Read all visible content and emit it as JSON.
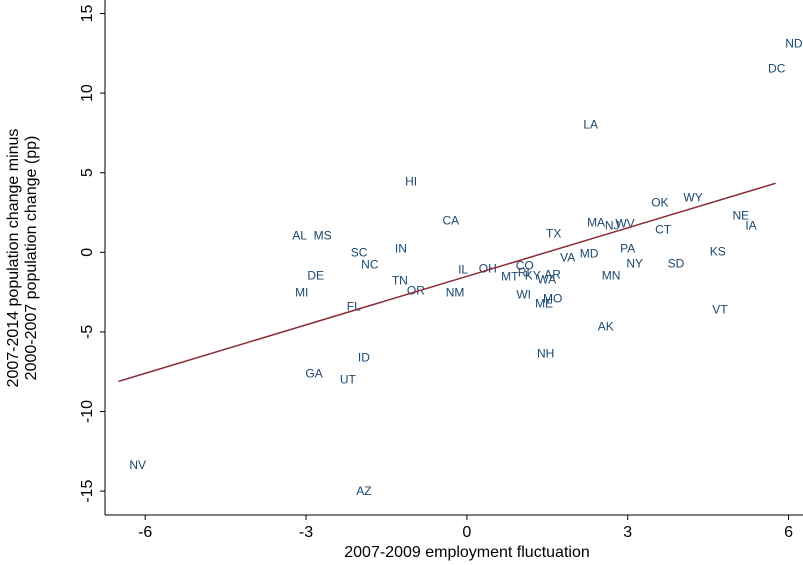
{
  "chart_data": {
    "type": "scatter",
    "xlabel": "2007-2009 employment fluctuation",
    "ylabel": [
      "2007-2014 population change minus",
      "2000-2007 population change (pp)"
    ],
    "xlim": [
      -6.75,
      6.27
    ],
    "ylim": [
      -16.5,
      15.85
    ],
    "xticks": [
      -6,
      -3,
      0,
      3,
      6
    ],
    "yticks": [
      -15,
      -10,
      -5,
      0,
      5,
      10,
      15
    ],
    "series": [
      {
        "color": "#1a476f",
        "labels": [
          "ND",
          "DC",
          "LA",
          "HI",
          "CA",
          "WY",
          "OK",
          "NE",
          "IA",
          "CT",
          "TX",
          "MA",
          "NJ",
          "WV",
          "AL",
          "MS",
          "SC",
          "IN",
          "NC",
          "PA",
          "KS",
          "MD",
          "VA",
          "NY",
          "SD",
          "DE",
          "IL",
          "OH",
          "CO",
          "TN",
          "MT",
          "RI",
          "KY",
          "AR",
          "WA",
          "MN",
          "OR",
          "NM",
          "MI",
          "WI",
          "MO",
          "ME",
          "FL",
          "VT",
          "AK",
          "NH",
          "ID",
          "GA",
          "UT",
          "NV",
          "AZ"
        ],
        "x": [
          6.1,
          5.78,
          2.31,
          -1.04,
          -0.3,
          4.22,
          3.6,
          5.11,
          5.3,
          3.66,
          1.62,
          2.41,
          2.71,
          2.95,
          -3.12,
          -2.69,
          -2.01,
          -1.23,
          -1.81,
          3.0,
          4.68,
          2.28,
          1.88,
          3.13,
          3.9,
          -2.82,
          -0.07,
          0.39,
          1.08,
          -1.25,
          0.8,
          1.06,
          1.23,
          1.6,
          1.49,
          2.69,
          -0.95,
          -0.22,
          -3.08,
          1.06,
          1.6,
          1.44,
          -2.11,
          4.72,
          2.59,
          1.47,
          -1.92,
          -2.85,
          -2.22,
          -6.14,
          -1.92
        ],
        "values": [
          13.08,
          11.5,
          7.99,
          4.4,
          1.95,
          3.4,
          3.08,
          2.26,
          1.64,
          1.38,
          1.13,
          1.82,
          1.64,
          1.76,
          1.01,
          1.01,
          -0.06,
          0.19,
          -0.82,
          0.19,
          0,
          -0.13,
          -0.38,
          -0.75,
          -0.75,
          -1.51,
          -1.13,
          -1.07,
          -0.88,
          -1.82,
          -1.57,
          -1.32,
          -1.51,
          -1.45,
          -1.76,
          -1.51,
          -2.45,
          -2.58,
          -2.58,
          -2.7,
          -2.96,
          -3.27,
          -3.46,
          -3.65,
          -4.72,
          -6.42,
          -6.67,
          -7.67,
          -8.05,
          -13.4,
          -15.03
        ]
      }
    ],
    "fit_line": {
      "color": "#8b2a35",
      "x": [
        -6.5,
        5.76
      ],
      "y": [
        -8.11,
        4.34
      ]
    }
  }
}
